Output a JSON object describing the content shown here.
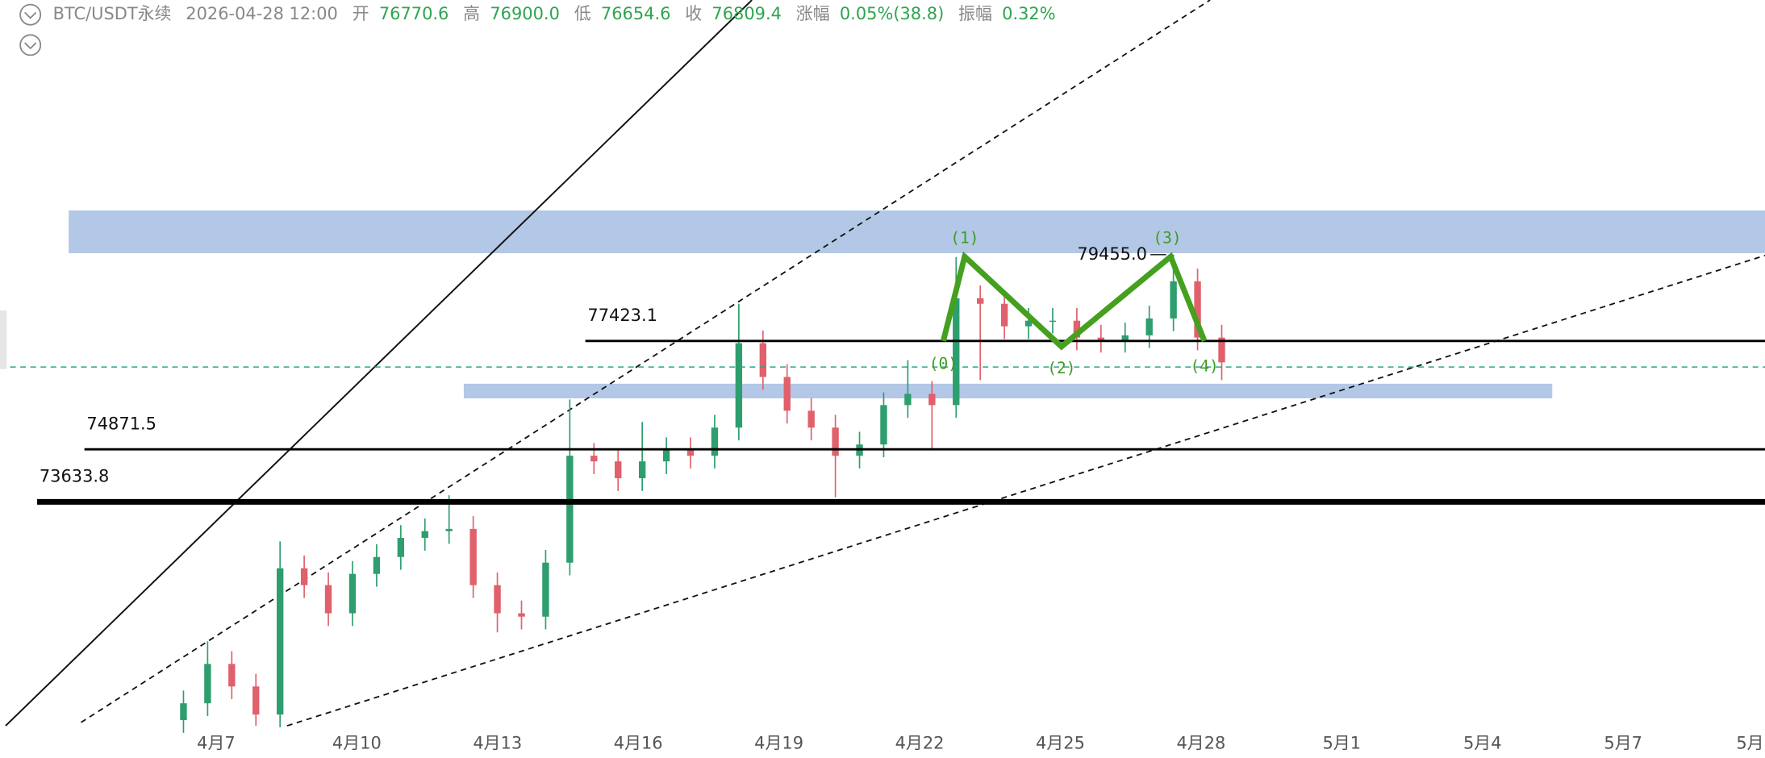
{
  "chart_data": {
    "type": "candlestick",
    "header": {
      "symbol": "BTC/USDT永续",
      "time": "2026-04-28 12:00",
      "open_label": "开",
      "open": 76770.6,
      "high_label": "高",
      "high": {
        "value": 76900,
        "label": "76900.0"
      },
      "low_label": "低",
      "low": 76654.6,
      "close_label": "收",
      "close": 76809.4,
      "change_label": "涨幅",
      "change": "0.05%(38.8)",
      "amplitude_label": "振幅",
      "amplitude": "0.32%"
    },
    "categories": [
      "4月7",
      "4月10",
      "4月13",
      "4月16",
      "4月19",
      "4月22",
      "4月25",
      "4月28",
      "5月1",
      "5月4",
      "5月7",
      "5月"
    ],
    "ylim": [
      68360,
      85452
    ],
    "up_color": "#2e9e6e",
    "down_color": "#e0606b",
    "open": [
      68493,
      68890,
      69817,
      69287,
      68625,
      72070,
      71672,
      71010,
      71937,
      72335,
      72785,
      72944,
      72997,
      71672,
      71010,
      70930,
      72202,
      74720,
      74587,
      74190,
      74587,
      74852,
      74720,
      75382,
      77370,
      76575,
      75780,
      75382,
      74720,
      74985,
      75912,
      76177,
      75912,
      78430,
      78298,
      77768,
      77900,
      77900,
      77503,
      77450,
      77555,
      77953,
      78828,
      77503
    ],
    "high": [
      69190,
      70350,
      70117,
      69587,
      72700,
      72370,
      71972,
      72237,
      72635,
      73085,
      73244,
      73790,
      73297,
      71972,
      71310,
      72502,
      76045,
      75020,
      74887,
      75515,
      75152,
      75152,
      75682,
      78298,
      77670,
      76875,
      76080,
      75682,
      75285,
      76212,
      76972,
      76477,
      79400,
      78730,
      78598,
      78200,
      78200,
      78200,
      77803,
      77855,
      78253,
      79455,
      79128,
      77803
    ],
    "low": [
      68193,
      68590,
      68987,
      68360,
      68325,
      71372,
      70710,
      70710,
      71637,
      72035,
      72485,
      72644,
      71372,
      70560,
      70630,
      70630,
      71902,
      74287,
      73890,
      73890,
      74287,
      74420,
      74420,
      75082,
      76275,
      75480,
      75082,
      73740,
      74420,
      74685,
      75612,
      74853,
      75612,
      76500,
      77468,
      77468,
      77600,
      77203,
      77150,
      77150,
      77255,
      77653,
      77203,
      76500
    ],
    "close": [
      68890,
      69817,
      69287,
      68625,
      72070,
      71672,
      71010,
      71937,
      72335,
      72785,
      72944,
      72997,
      71672,
      71010,
      70930,
      72202,
      74720,
      74587,
      74190,
      74587,
      74852,
      74720,
      75382,
      77370,
      76575,
      75780,
      75382,
      74720,
      74985,
      75912,
      76177,
      75912,
      78430,
      78298,
      77768,
      77900,
      77900,
      77503,
      77450,
      77555,
      77953,
      78828,
      77503,
      76919
    ],
    "levels": [
      77423.1,
      74871.5,
      73633.8
    ],
    "high_marker": {
      "value": 79455,
      "label": "79455.0"
    },
    "wave_labels": [
      "(1)",
      "(2)",
      "(3)",
      "(4)",
      "(0)"
    ]
  }
}
